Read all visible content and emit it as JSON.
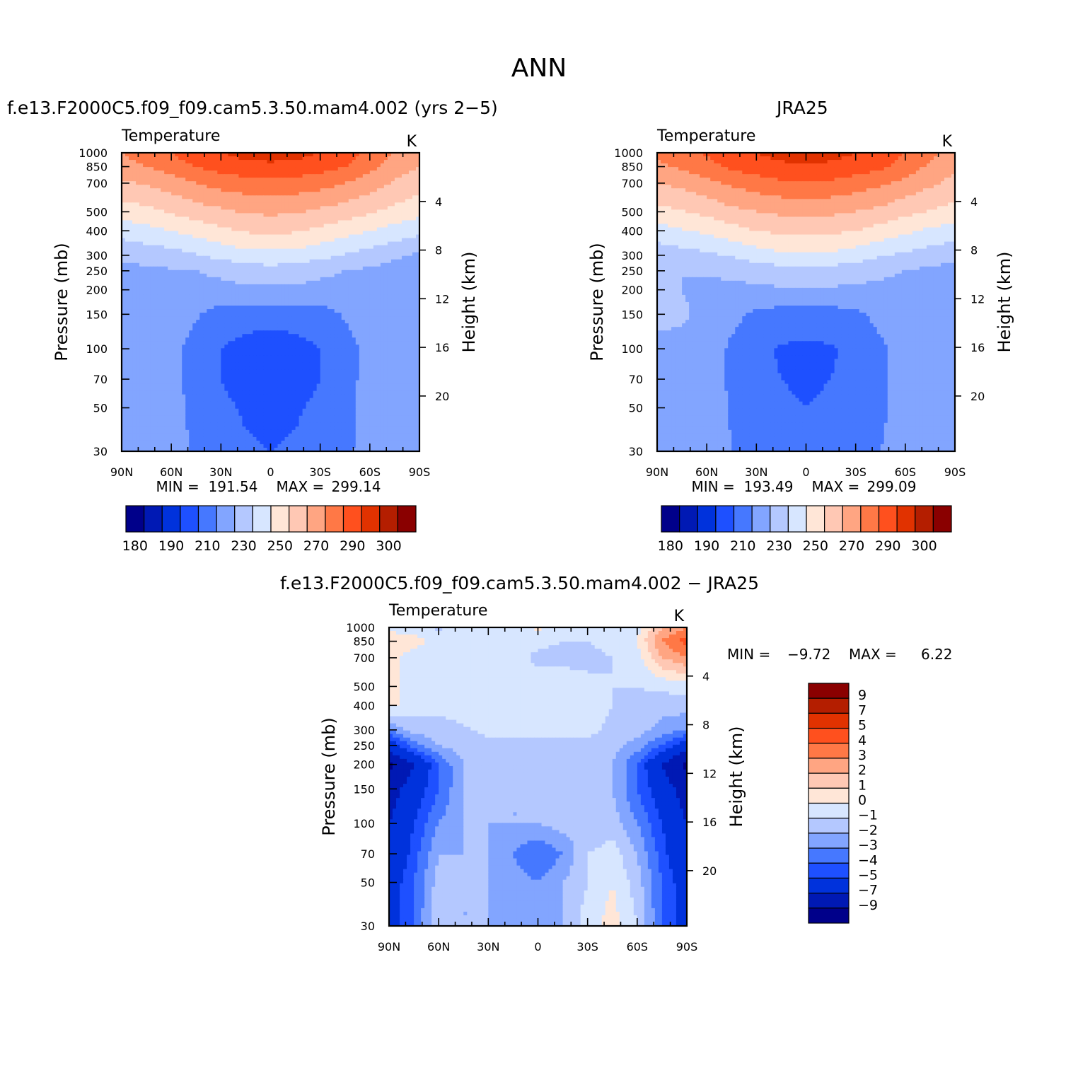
{
  "figure": {
    "title": "ANN"
  },
  "chart_data": [
    {
      "type": "heatmap",
      "title": "f.e13.F2000C5.f09_f09.cam5.3.50.mam4.002 (yrs 2−5)",
      "variable": "Temperature",
      "units": "K",
      "xlabel": "",
      "ylabel": "Pressure (mb)",
      "y2label": "Height (km)",
      "x_ticks": [
        "90N",
        "60N",
        "30N",
        "0",
        "30S",
        "60S",
        "90S"
      ],
      "y_ticks": [
        "30",
        "50",
        "70",
        "100",
        "150",
        "200",
        "250",
        "300",
        "400",
        "500",
        "700",
        "850",
        "1000"
      ],
      "y2_ticks": [
        "20",
        "16",
        "12",
        "8",
        "4"
      ],
      "x": [
        90,
        75,
        60,
        45,
        30,
        15,
        0,
        -15,
        -30,
        -45,
        -60,
        -75,
        -90
      ],
      "y": [
        30,
        50,
        70,
        100,
        150,
        200,
        250,
        300,
        400,
        500,
        700,
        850,
        1000
      ],
      "z": [
        [
          212,
          214,
          215,
          208,
          203,
          201,
          200,
          201,
          203,
          208,
          214,
          212,
          210
        ],
        [
          212,
          214,
          214,
          207,
          202,
          199,
          198,
          199,
          202,
          206,
          214,
          212,
          210
        ],
        [
          214,
          215,
          213,
          206,
          200,
          196,
          195,
          196,
          200,
          206,
          214,
          212,
          210
        ],
        [
          215,
          216,
          213,
          206,
          200,
          196,
          194,
          196,
          200,
          206,
          213,
          213,
          210
        ],
        [
          216,
          216,
          216,
          211,
          206,
          205,
          205,
          205,
          206,
          211,
          216,
          213,
          210
        ],
        [
          216,
          216,
          217,
          217,
          217,
          218,
          218,
          218,
          217,
          217,
          216,
          215,
          212
        ],
        [
          217,
          218,
          219,
          220,
          222,
          225,
          226,
          225,
          222,
          220,
          218,
          216,
          215
        ],
        [
          222,
          224,
          226,
          229,
          233,
          236,
          237,
          236,
          233,
          229,
          226,
          222,
          218
        ],
        [
          234,
          237,
          240,
          244,
          248,
          251,
          252,
          251,
          248,
          244,
          240,
          236,
          233
        ],
        [
          245,
          247,
          251,
          255,
          258,
          261,
          262,
          261,
          258,
          255,
          251,
          247,
          243
        ],
        [
          258,
          261,
          265,
          270,
          274,
          276,
          277,
          276,
          274,
          270,
          265,
          259,
          254
        ],
        [
          266,
          270,
          275,
          280,
          284,
          287,
          288,
          287,
          284,
          280,
          273,
          265,
          260
        ],
        [
          270,
          275,
          280,
          286,
          290,
          293,
          294,
          293,
          290,
          285,
          278,
          270,
          265
        ]
      ],
      "levels": [
        180,
        185,
        190,
        200,
        210,
        220,
        230,
        240,
        250,
        260,
        270,
        280,
        290,
        295,
        300
      ],
      "colorbar_labels": [
        "180",
        "190",
        "210",
        "230",
        "250",
        "270",
        "290",
        "300"
      ],
      "colors": [
        "#00008a",
        "#0019b4",
        "#0032dc",
        "#1e50ff",
        "#4678ff",
        "#82a5ff",
        "#b4c8ff",
        "#d7e6ff",
        "#ffe6d7",
        "#ffc8b4",
        "#ffa582",
        "#ff7846",
        "#ff501e",
        "#e13200",
        "#b41e00",
        "#8a0000"
      ],
      "stats": {
        "min_label": "MIN = ",
        "min": "191.54",
        "max_label": "MAX = ",
        "max": "299.14"
      }
    },
    {
      "type": "heatmap",
      "title": "JRA25",
      "variable": "Temperature",
      "units": "K",
      "xlabel": "",
      "ylabel": "Pressure (mb)",
      "y2label": "Height (km)",
      "x_ticks": [
        "90N",
        "60N",
        "30N",
        "0",
        "30S",
        "60S",
        "90S"
      ],
      "y_ticks": [
        "30",
        "50",
        "70",
        "100",
        "150",
        "200",
        "250",
        "300",
        "400",
        "500",
        "700",
        "850",
        "1000"
      ],
      "y2_ticks": [
        "20",
        "16",
        "12",
        "8",
        "4"
      ],
      "x": [
        90,
        75,
        60,
        45,
        30,
        15,
        0,
        -15,
        -30,
        -45,
        -60,
        -75,
        -90
      ],
      "y": [
        30,
        50,
        70,
        100,
        150,
        200,
        250,
        300,
        400,
        500,
        700,
        850,
        1000
      ],
      "z": [
        [
          214,
          216,
          216,
          210,
          205,
          203,
          202,
          203,
          205,
          210,
          215,
          213,
          211
        ],
        [
          215,
          216,
          216,
          209,
          204,
          201,
          200,
          201,
          204,
          208,
          215,
          213,
          211
        ],
        [
          216,
          217,
          216,
          208,
          203,
          200,
          199,
          200,
          203,
          208,
          215,
          213,
          211
        ],
        [
          218,
          218,
          216,
          208,
          202,
          199,
          198,
          199,
          202,
          208,
          215,
          214,
          211
        ],
        [
          222,
          221,
          218,
          213,
          208,
          206,
          206,
          206,
          208,
          213,
          216,
          215,
          212
        ],
        [
          222,
          220,
          218,
          218,
          218,
          219,
          219,
          219,
          218,
          218,
          217,
          216,
          214
        ],
        [
          221,
          220,
          221,
          222,
          224,
          226,
          227,
          226,
          224,
          222,
          220,
          218,
          217
        ],
        [
          224,
          226,
          228,
          231,
          235,
          238,
          239,
          238,
          235,
          231,
          228,
          225,
          222
        ],
        [
          236,
          239,
          242,
          246,
          250,
          252,
          253,
          252,
          250,
          246,
          242,
          238,
          236
        ],
        [
          247,
          249,
          253,
          257,
          260,
          262,
          263,
          262,
          260,
          257,
          253,
          249,
          246
        ],
        [
          260,
          263,
          267,
          272,
          275,
          278,
          279,
          278,
          275,
          272,
          267,
          262,
          257
        ],
        [
          268,
          272,
          277,
          282,
          285,
          288,
          289,
          288,
          285,
          282,
          276,
          268,
          262
        ],
        [
          271,
          276,
          281,
          286,
          290,
          293,
          294,
          293,
          290,
          286,
          280,
          272,
          267
        ]
      ],
      "levels": [
        180,
        185,
        190,
        200,
        210,
        220,
        230,
        240,
        250,
        260,
        270,
        280,
        290,
        295,
        300
      ],
      "colorbar_labels": [
        "180",
        "190",
        "210",
        "230",
        "250",
        "270",
        "290",
        "300"
      ],
      "colors": [
        "#00008a",
        "#0019b4",
        "#0032dc",
        "#1e50ff",
        "#4678ff",
        "#82a5ff",
        "#b4c8ff",
        "#d7e6ff",
        "#ffe6d7",
        "#ffc8b4",
        "#ffa582",
        "#ff7846",
        "#ff501e",
        "#e13200",
        "#b41e00",
        "#8a0000"
      ],
      "stats": {
        "min_label": "MIN = ",
        "min": "193.49",
        "max_label": "MAX = ",
        "max": "299.09"
      }
    },
    {
      "type": "heatmap",
      "title": "f.e13.F2000C5.f09_f09.cam5.3.50.mam4.002 − JRA25",
      "variable": "Temperature",
      "units": "K",
      "xlabel": "",
      "ylabel": "Pressure (mb)",
      "y2label": "Height (km)",
      "x_ticks": [
        "90N",
        "60N",
        "30N",
        "0",
        "30S",
        "60S",
        "90S"
      ],
      "y_ticks": [
        "30",
        "50",
        "70",
        "100",
        "150",
        "200",
        "250",
        "300",
        "400",
        "500",
        "700",
        "850",
        "1000"
      ],
      "y2_ticks": [
        "20",
        "16",
        "12",
        "8",
        "4"
      ],
      "x": [
        90,
        75,
        60,
        45,
        30,
        15,
        0,
        -15,
        -30,
        -45,
        -60,
        -75,
        -90
      ],
      "y": [
        30,
        50,
        70,
        100,
        150,
        200,
        250,
        300,
        400,
        500,
        700,
        850,
        1000
      ],
      "z": [
        [
          -6,
          -4,
          -1,
          -2,
          -2,
          -3,
          -2,
          -2,
          -0.5,
          0.5,
          -1,
          -4,
          -6
        ],
        [
          -6,
          -4,
          -1.5,
          -2,
          -2,
          -2.5,
          -3,
          -2,
          -1,
          0,
          -1.5,
          -4,
          -6
        ],
        [
          -7,
          -4.5,
          -2,
          -2,
          -2,
          -3,
          -4,
          -3,
          -1,
          -0.5,
          -2,
          -4.5,
          -7
        ],
        [
          -7,
          -5,
          -3,
          -2,
          -2,
          -2,
          -2,
          -1.5,
          -2,
          -1.5,
          -3,
          -5,
          -7
        ],
        [
          -8,
          -6,
          -4,
          -2,
          -1.5,
          -2,
          -2,
          -1.5,
          -2,
          -2,
          -4,
          -6,
          -8
        ],
        [
          -9.5,
          -7,
          -4,
          -2,
          -1.5,
          -1.5,
          -1.5,
          -1.5,
          -1.5,
          -2,
          -4,
          -7,
          -9.5
        ],
        [
          -6,
          -3.5,
          -2,
          -1.5,
          -1.2,
          -1.2,
          -1.2,
          -1.2,
          -1.2,
          -1.5,
          -2.5,
          -4,
          -6
        ],
        [
          -3,
          -1.5,
          -1.3,
          -1.1,
          -0.8,
          -0.8,
          -0.8,
          -0.8,
          -0.8,
          -1.2,
          -1.5,
          -2.5,
          -3
        ],
        [
          0.3,
          -0.5,
          -0.8,
          -0.6,
          -0.6,
          -0.6,
          -0.6,
          -0.6,
          -0.6,
          -1,
          -1.2,
          -1.5,
          -1.5
        ],
        [
          0.5,
          -0.5,
          -0.6,
          -0.6,
          -0.6,
          -0.6,
          -0.6,
          -0.6,
          -0.8,
          -1,
          -1,
          -0.8,
          -0.5
        ],
        [
          0.3,
          -0.5,
          -0.5,
          -0.5,
          -0.6,
          -0.6,
          -1.2,
          -1.2,
          -1.2,
          -1,
          -0.5,
          2,
          3
        ],
        [
          0.6,
          0.4,
          -0.3,
          -0.4,
          -0.5,
          -0.6,
          -0.8,
          -1,
          -1,
          -0.8,
          0,
          3,
          4.5
        ],
        [
          -0.3,
          -0.4,
          -1.2,
          -0.6,
          -0.3,
          -0.6,
          0.3,
          -0.6,
          -0.6,
          -0.5,
          -0.3,
          2,
          3
        ]
      ],
      "levels": [
        -9,
        -7,
        -5,
        -4,
        -3,
        -2,
        -1,
        0,
        1,
        2,
        3,
        4,
        5,
        7,
        9
      ],
      "colorbar_labels": [
        "9",
        "7",
        "5",
        "4",
        "3",
        "2",
        "1",
        "0",
        "−1",
        "−2",
        "−3",
        "−4",
        "−5",
        "−7",
        "−9"
      ],
      "colors": [
        "#00008a",
        "#0019b4",
        "#0032dc",
        "#1e50ff",
        "#4678ff",
        "#82a5ff",
        "#b4c8ff",
        "#d7e6ff",
        "#ffe6d7",
        "#ffc8b4",
        "#ffa582",
        "#ff7846",
        "#ff501e",
        "#e13200",
        "#b41e00",
        "#8a0000"
      ],
      "stats": {
        "min_label": "MIN = ",
        "min": "−9.72",
        "max_label": "MAX = ",
        "max": "6.22"
      }
    }
  ]
}
